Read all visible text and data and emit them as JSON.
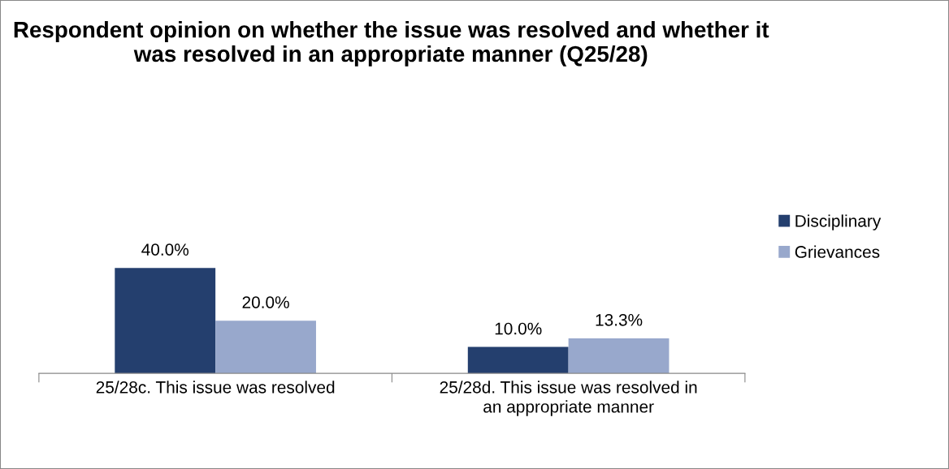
{
  "chart_data": {
    "type": "bar",
    "title": "Respondent opinion on whether the issue was resolved and whether it was resolved in an appropriate manner (Q25/28)",
    "categories": [
      "25/28c. This issue was resolved",
      "25/28d. This issue was resolved in an appropriate manner"
    ],
    "series": [
      {
        "name": "Disciplinary",
        "color": "#243f6e",
        "values": [
          40.0,
          10.0
        ],
        "value_labels": [
          "40.0%",
          "10.0%"
        ]
      },
      {
        "name": "Grievances",
        "color": "#98a8cc",
        "values": [
          20.0,
          13.3
        ],
        "value_labels": [
          "20.0%",
          "13.3%"
        ]
      }
    ],
    "legend": "right",
    "grid": false
  }
}
